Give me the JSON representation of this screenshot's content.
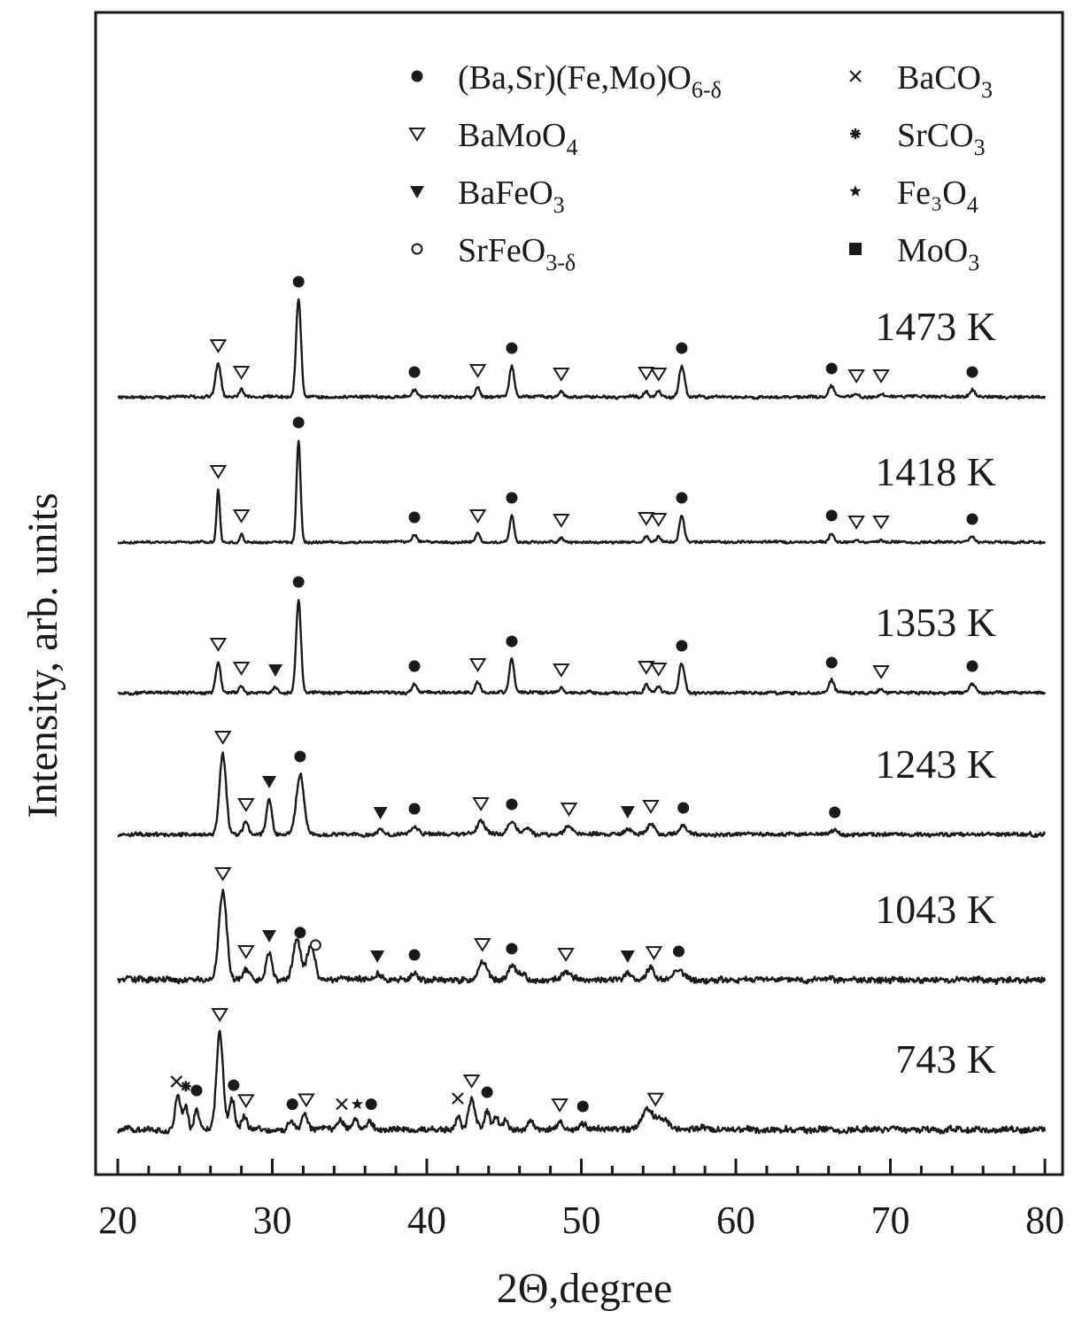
{
  "chart_data": {
    "type": "line",
    "xlabel": "2Θ,degree",
    "ylabel": "Intensity, arb. units",
    "xlim": [
      20,
      80
    ],
    "x_ticks": [
      20,
      30,
      40,
      50,
      60,
      70,
      80
    ],
    "y_tick_labels": "none",
    "grid": false,
    "legend": {
      "placement": "top",
      "entries": [
        {
          "marker": "filled-circle",
          "label": "(Ba,Sr)(Fe,Mo)O",
          "sub": "6-δ"
        },
        {
          "marker": "cross",
          "label": "BaCO",
          "sub": "3"
        },
        {
          "marker": "open-triangle-down",
          "label": "BaMoO",
          "sub": "4"
        },
        {
          "marker": "filled-asterisk",
          "label": "SrCO",
          "sub": "3"
        },
        {
          "marker": "filled-triangle-down",
          "label": "BaFeO",
          "sub": "3"
        },
        {
          "marker": "filled-star",
          "label": "Fe₃O",
          "sub": "4"
        },
        {
          "marker": "open-circle",
          "label": "SrFeO",
          "sub": "3-δ"
        },
        {
          "marker": "filled-square",
          "label": "MoO",
          "sub": "3"
        }
      ]
    },
    "series": [
      {
        "name": "1473 K",
        "noise": 1.5,
        "peaks": [
          [
            26.5,
            38,
            0.25
          ],
          [
            28.0,
            8,
            0.2
          ],
          [
            31.7,
            110,
            0.22
          ],
          [
            39.2,
            8,
            0.2
          ],
          [
            43.3,
            10,
            0.2
          ],
          [
            45.5,
            35,
            0.22
          ],
          [
            48.7,
            6,
            0.2
          ],
          [
            54.2,
            7,
            0.2
          ],
          [
            55.0,
            6,
            0.2
          ],
          [
            56.5,
            35,
            0.25
          ],
          [
            66.2,
            12,
            0.25
          ],
          [
            67.8,
            4,
            0.2
          ],
          [
            69.4,
            4,
            0.2
          ],
          [
            75.3,
            8,
            0.25
          ]
        ],
        "markers": [
          [
            "tri-open",
            26.5
          ],
          [
            "tri-open",
            28.0
          ],
          [
            "circle",
            31.7
          ],
          [
            "circle",
            39.2
          ],
          [
            "tri-open",
            43.3
          ],
          [
            "circle",
            45.5
          ],
          [
            "tri-open",
            48.7
          ],
          [
            "tri-open",
            54.2
          ],
          [
            "tri-open",
            55.0
          ],
          [
            "circle",
            56.5
          ],
          [
            "circle",
            66.2
          ],
          [
            "tri-open",
            67.8
          ],
          [
            "tri-open",
            69.4
          ],
          [
            "circle",
            75.3
          ]
        ]
      },
      {
        "name": "1418 K",
        "noise": 1.2,
        "peaks": [
          [
            26.5,
            60,
            0.15
          ],
          [
            28.0,
            10,
            0.15
          ],
          [
            31.7,
            115,
            0.18
          ],
          [
            39.2,
            8,
            0.2
          ],
          [
            43.3,
            10,
            0.2
          ],
          [
            45.5,
            30,
            0.2
          ],
          [
            48.7,
            5,
            0.2
          ],
          [
            54.2,
            7,
            0.2
          ],
          [
            55.0,
            6,
            0.2
          ],
          [
            56.5,
            30,
            0.22
          ],
          [
            66.2,
            10,
            0.22
          ],
          [
            67.8,
            3,
            0.2
          ],
          [
            69.4,
            3,
            0.2
          ],
          [
            75.3,
            6,
            0.22
          ]
        ],
        "markers": [
          [
            "tri-open",
            26.5
          ],
          [
            "tri-open",
            28.0
          ],
          [
            "circle",
            31.7
          ],
          [
            "circle",
            39.2
          ],
          [
            "tri-open",
            43.3
          ],
          [
            "circle",
            45.5
          ],
          [
            "tri-open",
            48.7
          ],
          [
            "tri-open",
            54.2
          ],
          [
            "tri-open",
            55.0
          ],
          [
            "circle",
            56.5
          ],
          [
            "circle",
            66.2
          ],
          [
            "tri-open",
            67.8
          ],
          [
            "tri-open",
            69.4
          ],
          [
            "circle",
            75.3
          ]
        ]
      },
      {
        "name": "1353 K",
        "noise": 1.5,
        "peaks": [
          [
            26.5,
            35,
            0.22
          ],
          [
            28.0,
            8,
            0.2
          ],
          [
            30.2,
            6,
            0.2
          ],
          [
            31.7,
            105,
            0.22
          ],
          [
            39.2,
            10,
            0.22
          ],
          [
            43.3,
            12,
            0.22
          ],
          [
            45.5,
            38,
            0.22
          ],
          [
            48.7,
            6,
            0.2
          ],
          [
            54.2,
            9,
            0.2
          ],
          [
            55.0,
            7,
            0.2
          ],
          [
            56.5,
            33,
            0.25
          ],
          [
            66.2,
            14,
            0.25
          ],
          [
            69.4,
            4,
            0.2
          ],
          [
            75.3,
            10,
            0.28
          ]
        ],
        "markers": [
          [
            "tri-open",
            26.5
          ],
          [
            "tri-open",
            28.0
          ],
          [
            "tri-filled",
            30.2
          ],
          [
            "circle",
            31.7
          ],
          [
            "circle",
            39.2
          ],
          [
            "tri-open",
            43.3
          ],
          [
            "circle",
            45.5
          ],
          [
            "tri-open",
            48.7
          ],
          [
            "tri-open",
            54.2
          ],
          [
            "tri-open",
            55.0
          ],
          [
            "circle",
            56.5
          ],
          [
            "circle",
            66.2
          ],
          [
            "tri-open",
            69.4
          ],
          [
            "circle",
            75.3
          ]
        ]
      },
      {
        "name": "1243 K",
        "noise": 2.0,
        "peaks": [
          [
            26.8,
            90,
            0.3
          ],
          [
            28.3,
            14,
            0.25
          ],
          [
            29.8,
            40,
            0.25
          ],
          [
            31.8,
            68,
            0.35
          ],
          [
            37.0,
            5,
            0.3
          ],
          [
            39.2,
            9,
            0.3
          ],
          [
            43.5,
            15,
            0.35
          ],
          [
            45.5,
            14,
            0.35
          ],
          [
            46.5,
            6,
            0.3
          ],
          [
            49.2,
            9,
            0.35
          ],
          [
            53.0,
            6,
            0.3
          ],
          [
            54.5,
            12,
            0.35
          ],
          [
            56.6,
            10,
            0.35
          ],
          [
            66.4,
            5,
            0.3
          ]
        ],
        "markers": [
          [
            "tri-open",
            26.8
          ],
          [
            "tri-open",
            28.3
          ],
          [
            "tri-filled",
            29.8
          ],
          [
            "circle",
            31.8
          ],
          [
            "tri-filled",
            37.0
          ],
          [
            "circle",
            39.2
          ],
          [
            "tri-open",
            43.5
          ],
          [
            "circle",
            45.5
          ],
          [
            "tri-open",
            49.2
          ],
          [
            "tri-filled",
            53.0
          ],
          [
            "tri-open",
            54.5
          ],
          [
            "circle",
            56.6
          ],
          [
            "circle",
            66.4
          ]
        ]
      },
      {
        "name": "1043 K",
        "noise": 3.0,
        "peaks": [
          [
            26.8,
            100,
            0.35
          ],
          [
            28.3,
            12,
            0.3
          ],
          [
            29.8,
            30,
            0.25
          ],
          [
            31.6,
            45,
            0.35
          ],
          [
            32.5,
            40,
            0.35
          ],
          [
            36.8,
            7,
            0.3
          ],
          [
            39.2,
            8,
            0.3
          ],
          [
            43.6,
            20,
            0.4
          ],
          [
            45.5,
            15,
            0.35
          ],
          [
            46.2,
            8,
            0.3
          ],
          [
            49.0,
            9,
            0.35
          ],
          [
            53.0,
            7,
            0.3
          ],
          [
            54.5,
            15,
            0.35
          ],
          [
            56.3,
            12,
            0.45
          ]
        ],
        "markers": [
          [
            "tri-open",
            26.8
          ],
          [
            "tri-open",
            28.3
          ],
          [
            "tri-filled",
            29.8
          ],
          [
            "circle",
            31.8
          ],
          [
            "circle-open",
            32.8
          ],
          [
            "tri-filled",
            36.8
          ],
          [
            "circle",
            39.2
          ],
          [
            "tri-open",
            43.6
          ],
          [
            "circle",
            45.5
          ],
          [
            "tri-open",
            49.0
          ],
          [
            "tri-filled",
            53.0
          ],
          [
            "tri-open",
            54.7
          ],
          [
            "circle",
            56.3
          ]
        ]
      },
      {
        "name": "743 K",
        "noise": 3.0,
        "peaks": [
          [
            23.9,
            40,
            0.25
          ],
          [
            24.4,
            28,
            0.2
          ],
          [
            25.1,
            24,
            0.22
          ],
          [
            26.6,
            110,
            0.3
          ],
          [
            27.4,
            35,
            0.25
          ],
          [
            28.2,
            15,
            0.25
          ],
          [
            31.2,
            10,
            0.25
          ],
          [
            32.1,
            16,
            0.25
          ],
          [
            34.4,
            10,
            0.25
          ],
          [
            35.4,
            10,
            0.25
          ],
          [
            36.3,
            10,
            0.25
          ],
          [
            42.0,
            15,
            0.2
          ],
          [
            42.9,
            35,
            0.3
          ],
          [
            43.9,
            22,
            0.25
          ],
          [
            44.5,
            15,
            0.22
          ],
          [
            45.1,
            12,
            0.22
          ],
          [
            46.7,
            10,
            0.3
          ],
          [
            48.6,
            8,
            0.3
          ],
          [
            50.1,
            6,
            0.3
          ],
          [
            54.3,
            22,
            0.5
          ],
          [
            55.2,
            12,
            0.5
          ]
        ],
        "markers": [
          [
            "cross",
            23.8
          ],
          [
            "asterisk",
            24.4
          ],
          [
            "circle",
            25.1
          ],
          [
            "tri-open",
            26.6
          ],
          [
            "circle",
            27.5
          ],
          [
            "tri-open",
            28.3
          ],
          [
            "circle",
            31.3
          ],
          [
            "tri-open",
            32.2
          ],
          [
            "cross",
            34.5
          ],
          [
            "star",
            35.5
          ],
          [
            "circle",
            36.4
          ],
          [
            "cross",
            42.0
          ],
          [
            "tri-open",
            42.9
          ],
          [
            "circle",
            43.9
          ],
          [
            "tri-open",
            48.6
          ],
          [
            "circle",
            50.1
          ],
          [
            "tri-open",
            54.8
          ]
        ]
      }
    ]
  }
}
